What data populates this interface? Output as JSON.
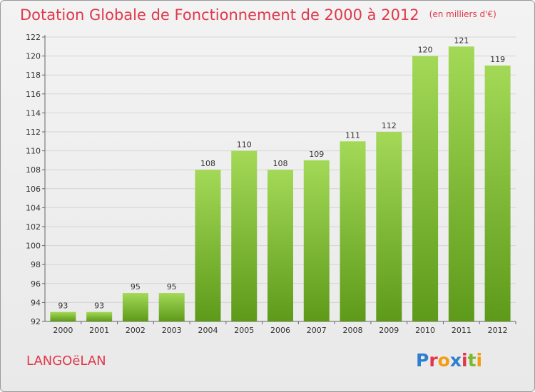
{
  "header": {
    "title": "Dotation Globale de Fonctionnement de 2000 à 2012",
    "subtitle": "(en milliers d'€)"
  },
  "footer": {
    "commune": "LANGOëLAN",
    "logo_letters": [
      "P",
      "r",
      "o",
      "x",
      "i",
      "t",
      "i"
    ],
    "logo_colors": [
      "#2f7fd0",
      "#e0384a",
      "#f39c12",
      "#2f7fd0",
      "#e0384a",
      "#7cb82f",
      "#f39c12"
    ]
  },
  "colors": {
    "bar_light": "#a3d957",
    "bar_dark": "#5e9a1a",
    "title": "#e0384a"
  },
  "chart_data": {
    "type": "bar",
    "categories": [
      "2000",
      "2001",
      "2002",
      "2003",
      "2004",
      "2005",
      "2006",
      "2007",
      "2008",
      "2009",
      "2010",
      "2011",
      "2012"
    ],
    "values": [
      93,
      93,
      95,
      95,
      108,
      110,
      108,
      109,
      111,
      112,
      120,
      121,
      119
    ],
    "title": "Dotation Globale de Fonctionnement de 2000 à 2012",
    "subtitle": "(en milliers d'€)",
    "ylim": [
      92,
      122
    ],
    "yticks": [
      92,
      94,
      96,
      98,
      100,
      102,
      104,
      106,
      108,
      110,
      112,
      114,
      116,
      118,
      120,
      122
    ],
    "grid": true
  }
}
